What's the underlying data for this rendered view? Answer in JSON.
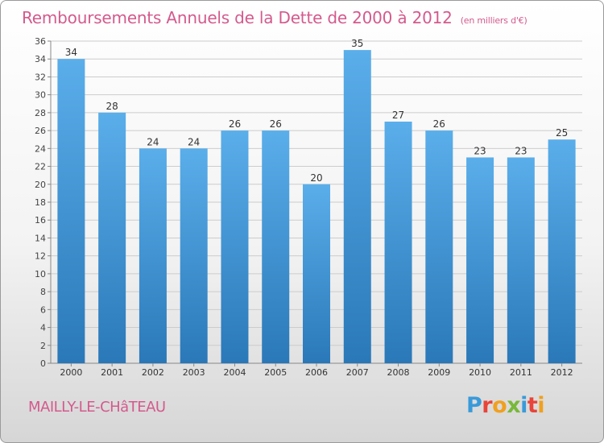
{
  "header": {
    "title": "Remboursements Annuels de la Dette de 2000 à 2012",
    "unit_note": "(en milliers d'€)"
  },
  "footer": {
    "commune": "MAILLY-LE-CHâTEAU",
    "brand_letters": [
      "P",
      "r",
      "o",
      "x",
      "i",
      "t",
      "i"
    ],
    "brand_colors": [
      "#3a9ad9",
      "#e8443a",
      "#f0a020",
      "#78b83a",
      "#3a9ad9",
      "#e8443a",
      "#f0a020"
    ]
  },
  "colors": {
    "accent": "#d45a8c",
    "bar_top": "#5aaeea",
    "bar_bottom": "#2a78b8",
    "grid": "#cccccc",
    "axis": "#888888"
  },
  "chart_data": {
    "type": "bar",
    "categories": [
      "2000",
      "2001",
      "2002",
      "2003",
      "2004",
      "2005",
      "2006",
      "2007",
      "2008",
      "2009",
      "2010",
      "2011",
      "2012"
    ],
    "values": [
      34,
      28,
      24,
      24,
      26,
      26,
      20,
      35,
      27,
      26,
      23,
      23,
      25
    ],
    "title": "Remboursements Annuels de la Dette de 2000 à 2012",
    "xlabel": "",
    "ylabel": "",
    "ylim": [
      0,
      36
    ],
    "yticks": [
      0,
      2,
      4,
      6,
      8,
      10,
      12,
      14,
      16,
      18,
      20,
      22,
      24,
      26,
      28,
      30,
      32,
      34,
      36
    ],
    "grid": true,
    "data_labels": true
  }
}
